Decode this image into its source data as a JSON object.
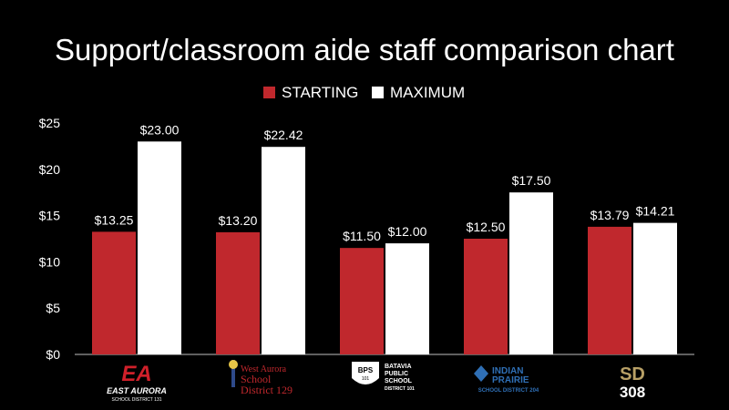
{
  "chart_data": {
    "type": "bar",
    "title": "Support/classroom aide staff comparison chart",
    "categories": [
      "East Aurora",
      "West Aurora School District 129",
      "Batavia Public School District 101",
      "Indian Prairie School District 204",
      "SD 308"
    ],
    "series": [
      {
        "name": "STARTING",
        "color": "#c0282d",
        "values": [
          13.25,
          13.2,
          11.5,
          12.5,
          13.79
        ]
      },
      {
        "name": "MAXIMUM",
        "color": "#ffffff",
        "values": [
          23.0,
          22.42,
          12.0,
          17.5,
          14.21
        ]
      }
    ],
    "data_labels": [
      [
        "$13.25",
        "$13.20",
        "$11.50",
        "$12.50",
        "$13.79"
      ],
      [
        "$23.00",
        "$22.42",
        "$12.00",
        "$17.50",
        "$14.21"
      ]
    ],
    "yticks": [
      "$0",
      "$5",
      "$10",
      "$15",
      "$20",
      "$25"
    ],
    "ytick_values": [
      0,
      5,
      10,
      15,
      20,
      25
    ],
    "ylim": [
      0,
      25
    ],
    "grid": false,
    "legend_position": "top-center",
    "logos": [
      {
        "name": "east-aurora-logo",
        "main": "EA",
        "sub": "EAST AURORA",
        "sub2": "SCHOOL DISTRICT 131",
        "colors": {
          "main": "#d0202a",
          "text": "#ffffff"
        }
      },
      {
        "name": "west-aurora-logo",
        "lines": [
          "West Aurora",
          "School",
          "District 129"
        ],
        "colors": {
          "main": "#c0282d"
        }
      },
      {
        "name": "batavia-logo",
        "badge": "BPS",
        "badge_sub": "101",
        "lines": [
          "BATAVIA",
          "PUBLIC",
          "SCHOOL",
          "DISTRICT 101"
        ],
        "colors": {
          "main": "#ffffff"
        }
      },
      {
        "name": "indian-prairie-logo",
        "lines": [
          "INDIAN",
          "PRAIRIE",
          "SCHOOL DISTRICT 204"
        ],
        "colors": {
          "main": "#2f6fb5"
        }
      },
      {
        "name": "sd308-logo",
        "top": "SD",
        "bottom": "308",
        "colors": {
          "main": "#b8a066"
        }
      }
    ]
  }
}
